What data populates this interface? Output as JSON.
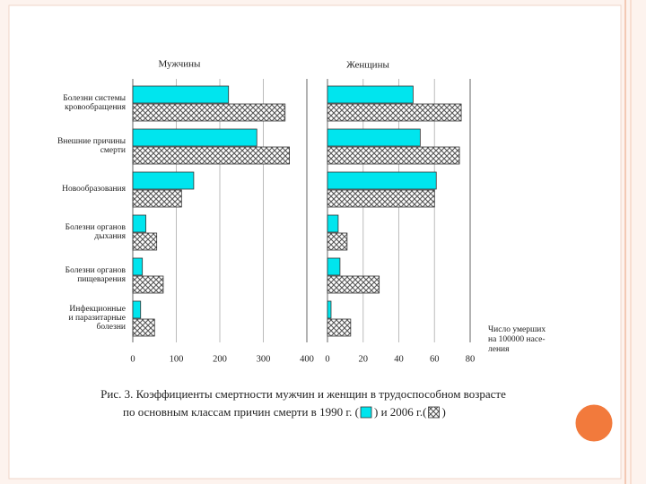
{
  "chart_data": [
    {
      "type": "barh",
      "title": "Мужчины",
      "categories": [
        [
          "Болезни системы",
          "кровообращения"
        ],
        [
          "Внешние причины",
          "смерти"
        ],
        [
          "Новообразования"
        ],
        [
          "Болезни органов",
          "дыхания"
        ],
        [
          "Болезни органов",
          "пищеварения"
        ],
        [
          "Инфекционные",
          "и паразитарные",
          "болезни"
        ]
      ],
      "series": [
        {
          "color": "#00e5ee",
          "values": [
            220,
            285,
            140,
            30,
            22,
            18
          ]
        },
        {
          "color": "hatch",
          "values": [
            350,
            360,
            112,
            55,
            70,
            50
          ]
        }
      ],
      "xlim": [
        0,
        400
      ],
      "xticks": [
        0,
        100,
        200,
        300,
        400
      ],
      "grid": true
    },
    {
      "type": "barh",
      "title": "Женщины",
      "series": [
        {
          "color": "#00e5ee",
          "values": [
            48,
            52,
            61,
            6,
            7,
            2
          ]
        },
        {
          "color": "hatch",
          "values": [
            75,
            74,
            60,
            11,
            29,
            13
          ]
        }
      ],
      "xlim": [
        0,
        80
      ],
      "xticks": [
        0,
        20,
        40,
        60,
        80
      ],
      "grid": true,
      "xlabel": [
        "Число умерших",
        "на 100000 насе-",
        "ления"
      ]
    }
  ],
  "caption": {
    "line1": "Рис. 3. Коэффициенты смертности мужчин и женщин в трудоспособном возрасте",
    "line2a": "по основным классам причин смерти в 1990 г. (",
    "line2b": ") и 2006 г.(",
    "line2c": ")"
  }
}
